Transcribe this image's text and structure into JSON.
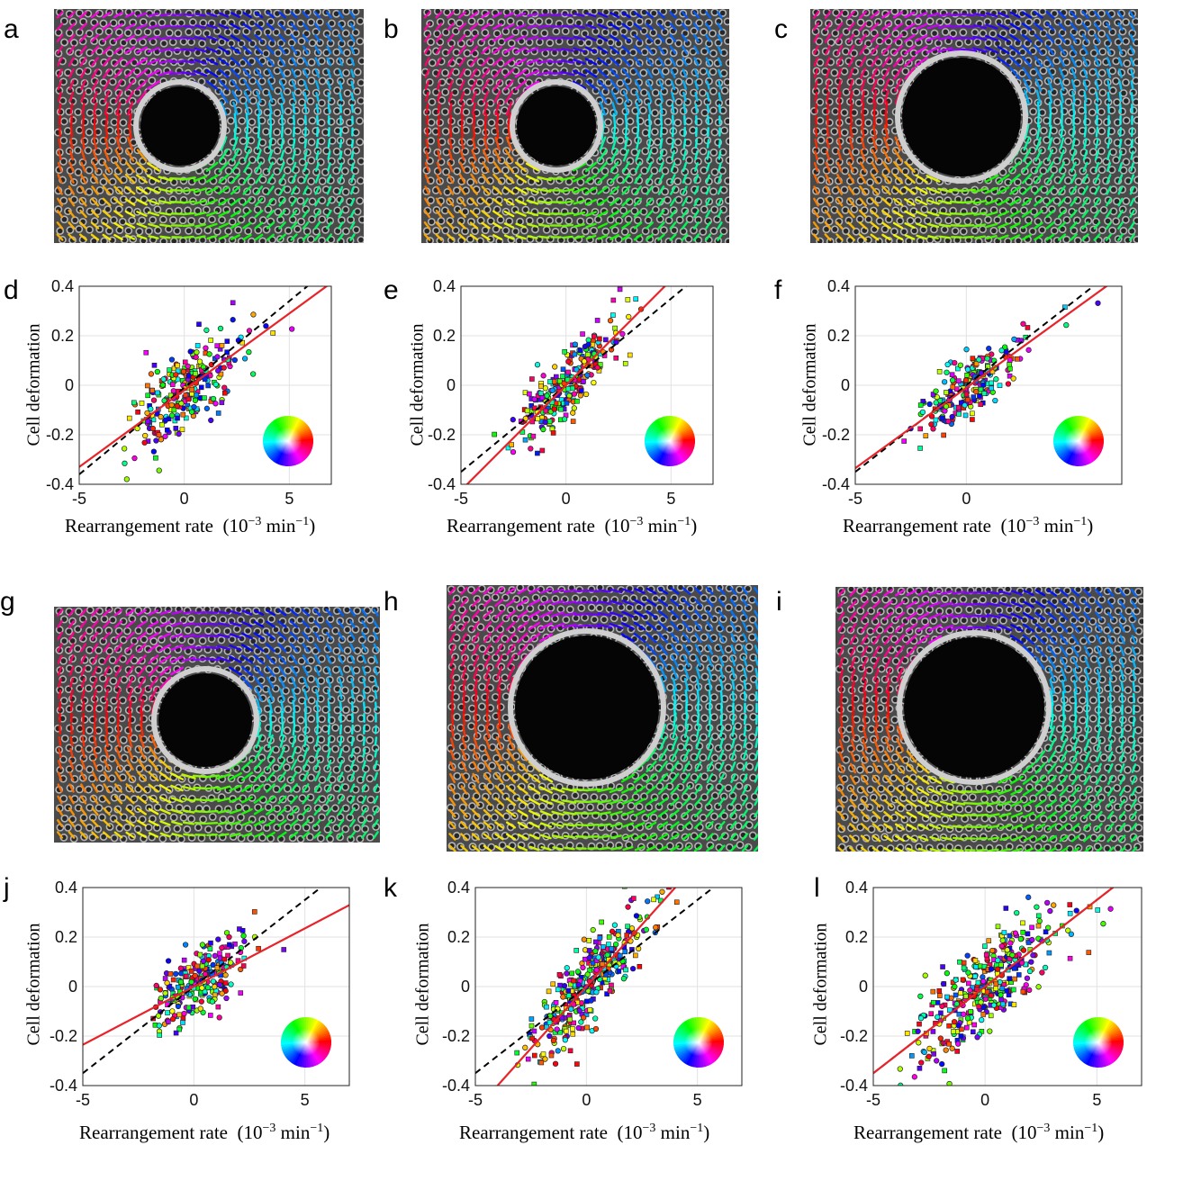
{
  "panel_labels": {
    "a": "a",
    "b": "b",
    "c": "c",
    "d": "d",
    "e": "e",
    "f": "f",
    "g": "g",
    "h": "h",
    "i": "i",
    "j": "j",
    "k": "k",
    "l": "l"
  },
  "axis_text": {
    "ylabel": "Cell deformation",
    "xlabel_main": "Rearrangement rate",
    "xlabel_units_pre": "(10",
    "xlabel_units_exp": "−3",
    "xlabel_units_mid": " min",
    "xlabel_units_exp2": "−1",
    "xlabel_units_post": ")"
  },
  "colors": {
    "fit_line": "#e8232a",
    "reference_line": "#000000",
    "grid": "#e2e2e2"
  },
  "chart_data": [
    {
      "id": "d",
      "type": "scatter",
      "xlim": [
        -5,
        7
      ],
      "ylim": [
        -0.4,
        0.4
      ],
      "xticks": [
        -5,
        0,
        5
      ],
      "xtick_labels": [
        "-5",
        "0",
        "5"
      ],
      "yticks": [
        -0.4,
        -0.2,
        0,
        0.2,
        0.4
      ],
      "ytick_labels": [
        "-0.4",
        "-0.2",
        "0",
        "0.2",
        "0.4"
      ],
      "xlabel": "Rearrangement rate (10^-3 min^-1)",
      "ylabel": "Cell deformation",
      "fit": {
        "slope": 0.062,
        "intercept": -0.02
      },
      "reference": {
        "slope": 0.07,
        "intercept": -0.01
      },
      "cloud": {
        "center_x": 0,
        "sx": 1.2,
        "sy": 0.08,
        "n": 260
      }
    },
    {
      "id": "e",
      "type": "scatter",
      "xlim": [
        -5,
        7
      ],
      "ylim": [
        -0.4,
        0.4
      ],
      "xticks": [
        -5,
        0,
        5
      ],
      "xtick_labels": [
        "-5",
        "0",
        "5"
      ],
      "yticks": [
        -0.4,
        -0.2,
        0,
        0.2,
        0.4
      ],
      "ytick_labels": [
        "-0.4",
        "-0.2",
        "0",
        "0.2",
        "0.4"
      ],
      "xlabel": "Rearrangement rate (10^-3 min^-1)",
      "ylabel": "Cell deformation",
      "fit": {
        "slope": 0.085,
        "intercept": 0.0
      },
      "reference": {
        "slope": 0.07,
        "intercept": 0.0
      },
      "cloud": {
        "center_x": 0,
        "sx": 1.2,
        "sy": 0.06,
        "n": 260
      }
    },
    {
      "id": "f",
      "type": "scatter",
      "xlim": [
        -5,
        7
      ],
      "ylim": [
        -0.4,
        0.4
      ],
      "xticks": [
        -5,
        0
      ],
      "xtick_labels": [
        "-5",
        "0"
      ],
      "yticks": [
        -0.4,
        -0.2,
        0,
        0.2,
        0.4
      ],
      "ytick_labels": [
        "-0.4",
        "-0.2",
        "0",
        "0.2",
        "0.4"
      ],
      "xlabel": "Rearrangement rate (10^-3 min^-1)",
      "ylabel": "Cell deformation",
      "fit": {
        "slope": 0.065,
        "intercept": -0.01
      },
      "reference": {
        "slope": 0.07,
        "intercept": 0.0
      },
      "cloud": {
        "center_x": 0,
        "sx": 1.0,
        "sy": 0.06,
        "n": 220
      }
    },
    {
      "id": "j",
      "type": "scatter",
      "xlim": [
        -5,
        7
      ],
      "ylim": [
        -0.4,
        0.4
      ],
      "xticks": [
        -5,
        0,
        5
      ],
      "xtick_labels": [
        "-5",
        "0",
        "5"
      ],
      "yticks": [
        -0.4,
        -0.2,
        0,
        0.2,
        0.4
      ],
      "ytick_labels": [
        "-0.4",
        "-0.2",
        "0",
        "0.2",
        "0.4"
      ],
      "xlabel": "Rearrangement rate (10^-3 min^-1)",
      "ylabel": "Cell deformation",
      "fit": {
        "slope": 0.047,
        "intercept": 0.0
      },
      "reference": {
        "slope": 0.07,
        "intercept": 0.0
      },
      "cloud": {
        "center_x": 0.2,
        "sx": 1.1,
        "sy": 0.07,
        "n": 240
      }
    },
    {
      "id": "k",
      "type": "scatter",
      "xlim": [
        -5,
        7
      ],
      "ylim": [
        -0.4,
        0.4
      ],
      "xticks": [
        -5,
        0,
        5
      ],
      "xtick_labels": [
        "-5",
        "0",
        "5"
      ],
      "yticks": [
        -0.4,
        -0.2,
        0,
        0.2,
        0.4
      ],
      "ytick_labels": [
        "-0.4",
        "-0.2",
        "0",
        "0.2",
        "0.4"
      ],
      "xlabel": "Rearrangement rate (10^-3 min^-1)",
      "ylabel": "Cell deformation",
      "fit": {
        "slope": 0.1,
        "intercept": 0.0
      },
      "reference": {
        "slope": 0.07,
        "intercept": 0.0
      },
      "cloud": {
        "center_x": 0,
        "sx": 1.3,
        "sy": 0.08,
        "n": 360
      }
    },
    {
      "id": "l",
      "type": "scatter",
      "xlim": [
        -5,
        7
      ],
      "ylim": [
        -0.4,
        0.4
      ],
      "xticks": [
        -5,
        0,
        5
      ],
      "xtick_labels": [
        "-5",
        "0",
        "5"
      ],
      "yticks": [
        -0.4,
        -0.2,
        0,
        0.2,
        0.4
      ],
      "ytick_labels": [
        "-0.4",
        "-0.2",
        "0",
        "0.2",
        "0.4"
      ],
      "xlabel": "Rearrangement rate (10^-3 min^-1)",
      "ylabel": "Cell deformation",
      "fit": {
        "slope": 0.07,
        "intercept": 0.0
      },
      "reference": {
        "slope": 0.07,
        "intercept": 0.0
      },
      "cloud": {
        "center_x": 0,
        "sx": 1.6,
        "sy": 0.09,
        "n": 380
      }
    }
  ]
}
